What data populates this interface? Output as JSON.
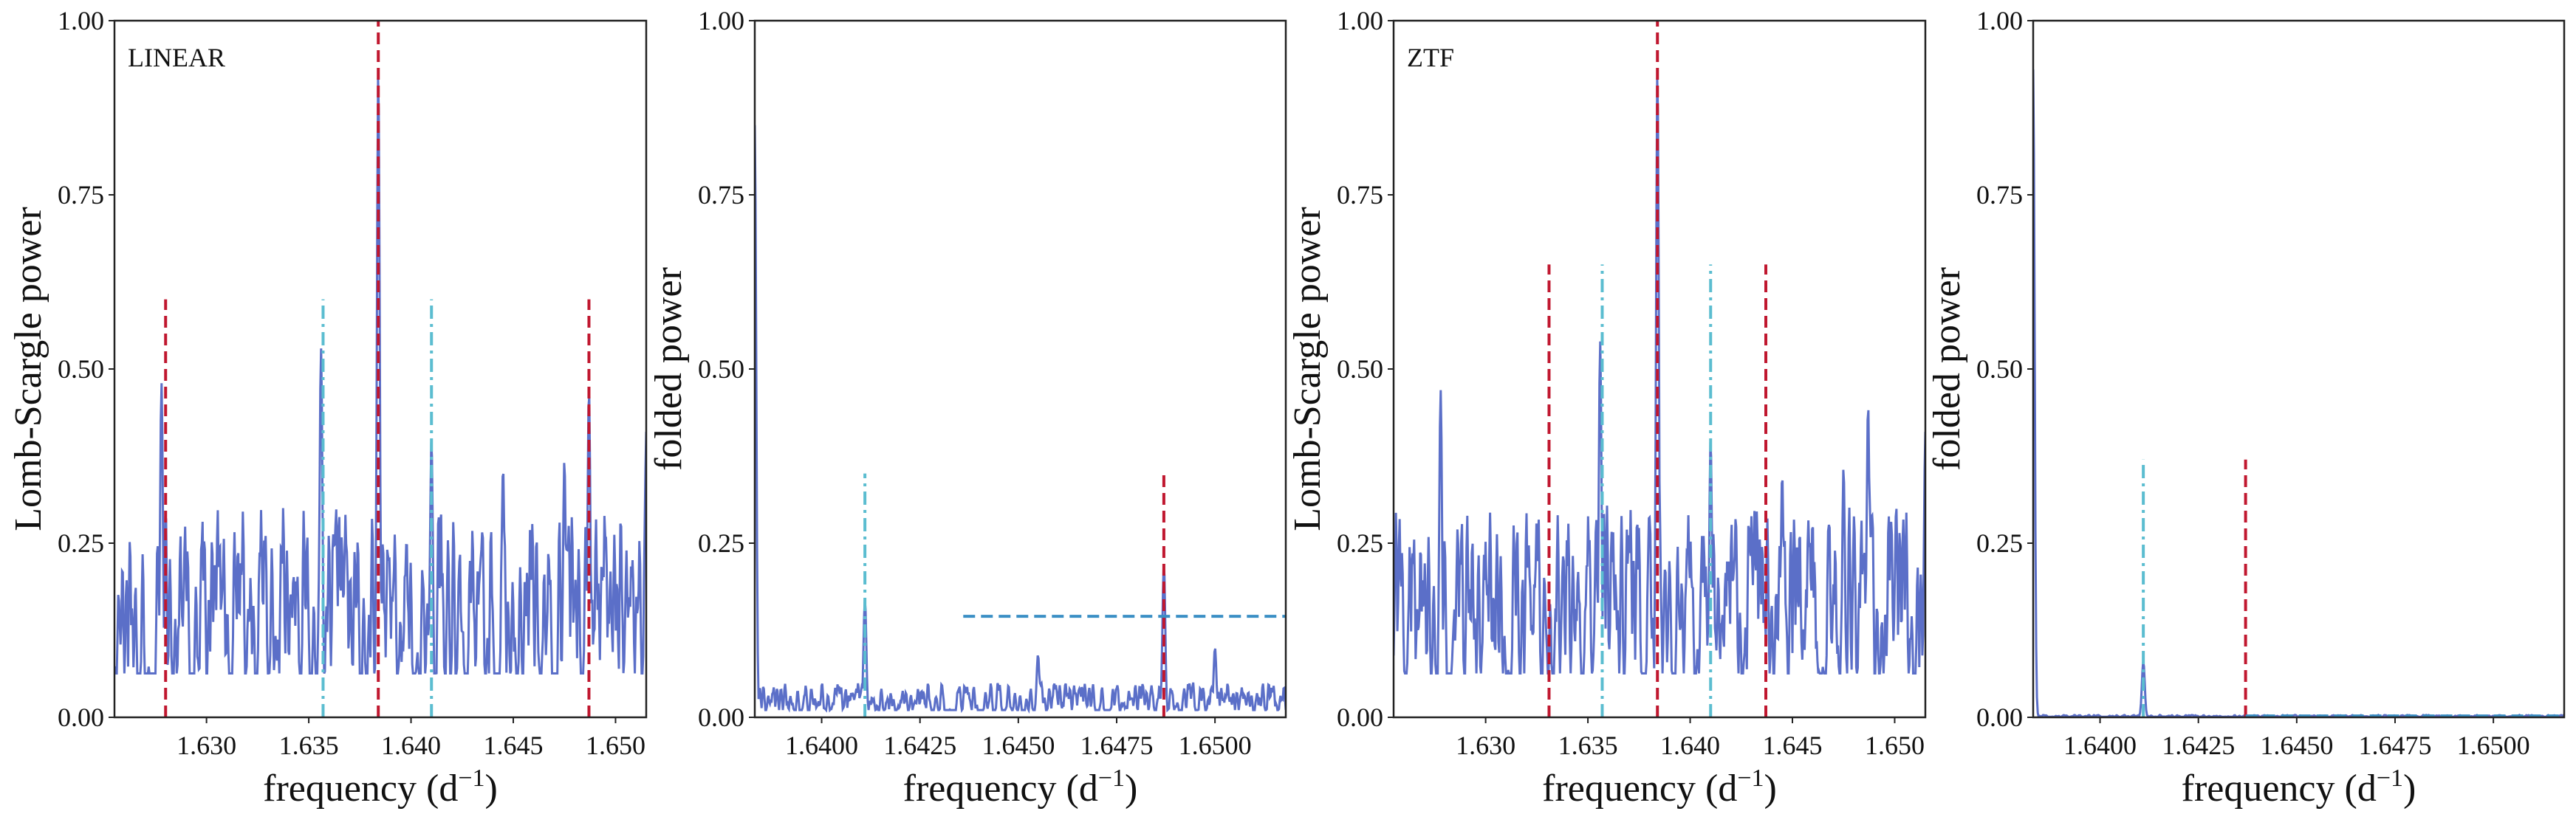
{
  "chart_data": [
    {
      "type": "line",
      "annotation": "LINEAR",
      "xlabel": "frequency (d",
      "xlabel_sup": "−1",
      "xlabel_tail": ")",
      "ylabel": "Lomb-Scargle power",
      "xlim": [
        1.6255,
        1.6515
      ],
      "ylim": [
        0,
        1
      ],
      "xticks": [
        1.63,
        1.635,
        1.64,
        1.645,
        1.65
      ],
      "xtick_labels": [
        "1.630",
        "1.635",
        "1.640",
        "1.645",
        "1.650"
      ],
      "yticks": [
        0,
        0.25,
        0.5,
        0.75,
        1.0
      ],
      "ytick_labels": [
        "0.00",
        "0.25",
        "0.50",
        "0.75",
        "1.00"
      ],
      "grid": false,
      "colors": {
        "series": "#5b6fc8",
        "red": "#c0172f",
        "cyan": "#5bbdd0"
      },
      "series": [
        {
          "peaks": [
            [
              1.6278,
              0.48
            ],
            [
              1.6356,
              0.53
            ],
            [
              1.6384,
              0.93
            ],
            [
              1.641,
              0.4
            ],
            [
              1.6487,
              0.47
            ],
            [
              1.6475,
              0.37
            ],
            [
              1.6445,
              0.36
            ],
            [
              1.6515,
              0.41
            ]
          ],
          "noise_level": 0.18
        }
      ],
      "vlines": [
        {
          "x": 1.628,
          "ymax": 0.6,
          "style": "dashed",
          "color": "#c0172f"
        },
        {
          "x": 1.6384,
          "ymax": 1.0,
          "style": "dashed",
          "color": "#c0172f"
        },
        {
          "x": 1.6487,
          "ymax": 0.6,
          "style": "dashed",
          "color": "#c0172f"
        },
        {
          "x": 1.6357,
          "ymax": 0.6,
          "style": "dashdot",
          "color": "#5bbdd0"
        },
        {
          "x": 1.641,
          "ymax": 0.6,
          "style": "dashdot",
          "color": "#5bbdd0"
        }
      ],
      "hlines": []
    },
    {
      "type": "line",
      "annotation": "",
      "xlabel": "frequency (d",
      "xlabel_sup": "−1",
      "xlabel_tail": ")",
      "ylabel": "folded power",
      "xlim": [
        1.6383,
        1.6518
      ],
      "ylim": [
        0,
        1
      ],
      "xticks": [
        1.64,
        1.6425,
        1.645,
        1.6475,
        1.65
      ],
      "xtick_labels": [
        "1.6400",
        "1.6425",
        "1.6450",
        "1.6475",
        "1.6500"
      ],
      "yticks": [
        0,
        0.25,
        0.5,
        0.75,
        1.0
      ],
      "ytick_labels": [
        "0.00",
        "0.25",
        "0.50",
        "0.75",
        "1.00"
      ],
      "grid": false,
      "colors": {
        "series": "#5b6fc8",
        "red": "#c0172f",
        "cyan": "#5bbdd0"
      },
      "series": [
        {
          "peaks": [
            [
              1.6383,
              0.85
            ],
            [
              1.6411,
              0.17
            ],
            [
              1.6487,
              0.22
            ],
            [
              1.6455,
              0.09
            ],
            [
              1.65,
              0.1
            ]
          ],
          "noise_level": 0.03
        }
      ],
      "vlines": [
        {
          "x": 1.6411,
          "ymax": 0.35,
          "style": "dashdot",
          "color": "#5bbdd0"
        },
        {
          "x": 1.6487,
          "ymax": 0.35,
          "style": "dashed",
          "color": "#c0172f"
        }
      ],
      "hlines": [
        {
          "y": 0.145,
          "xmin": 1.6436,
          "xmax": 1.6518,
          "style": "dashed",
          "color": "#3a8fc5"
        }
      ]
    },
    {
      "type": "line",
      "annotation": "ZTF",
      "xlabel": "frequency (d",
      "xlabel_sup": "−1",
      "xlabel_tail": ")",
      "ylabel": "Lomb-Scargle power",
      "xlim": [
        1.6255,
        1.6515
      ],
      "ylim": [
        0,
        1
      ],
      "xticks": [
        1.63,
        1.635,
        1.64,
        1.645,
        1.65
      ],
      "xtick_labels": [
        "1.630",
        "1.635",
        "1.640",
        "1.645",
        "1.650"
      ],
      "yticks": [
        0,
        0.25,
        0.5,
        0.75,
        1.0
      ],
      "ytick_labels": [
        "0.00",
        "0.25",
        "0.50",
        "0.75",
        "1.00"
      ],
      "grid": false,
      "colors": {
        "series": "#5b6fc8",
        "red": "#c0172f",
        "cyan": "#5bbdd0"
      },
      "series": [
        {
          "peaks": [
            [
              1.6278,
              0.47
            ],
            [
              1.6356,
              0.54
            ],
            [
              1.6384,
              0.93
            ],
            [
              1.641,
              0.4
            ],
            [
              1.6487,
              0.45
            ],
            [
              1.6475,
              0.36
            ],
            [
              1.6445,
              0.35
            ],
            [
              1.6515,
              0.41
            ]
          ],
          "noise_level": 0.18
        }
      ],
      "vlines": [
        {
          "x": 1.6331,
          "ymax": 0.65,
          "style": "dashed",
          "color": "#c0172f"
        },
        {
          "x": 1.6384,
          "ymax": 1.0,
          "style": "dashed",
          "color": "#c0172f"
        },
        {
          "x": 1.6437,
          "ymax": 0.65,
          "style": "dashed",
          "color": "#c0172f"
        },
        {
          "x": 1.6357,
          "ymax": 0.65,
          "style": "dashdot",
          "color": "#5bbdd0"
        },
        {
          "x": 1.641,
          "ymax": 0.65,
          "style": "dashdot",
          "color": "#5bbdd0"
        }
      ],
      "hlines": []
    },
    {
      "type": "line",
      "annotation": "",
      "xlabel": "frequency (d",
      "xlabel_sup": "−1",
      "xlabel_tail": ")",
      "ylabel": "folded power",
      "xlim": [
        1.6383,
        1.6518
      ],
      "ylim": [
        0,
        1
      ],
      "xticks": [
        1.64,
        1.6425,
        1.645,
        1.6475,
        1.65
      ],
      "xtick_labels": [
        "1.6400",
        "1.6425",
        "1.6450",
        "1.6475",
        "1.6500"
      ],
      "yticks": [
        0,
        0.25,
        0.5,
        0.75,
        1.0
      ],
      "ytick_labels": [
        "0.00",
        "0.25",
        "0.50",
        "0.75",
        "1.00"
      ],
      "grid": false,
      "colors": {
        "series": "#5b6fc8",
        "red": "#c0172f",
        "cyan": "#5bbdd0"
      },
      "series": [
        {
          "peaks": [
            [
              1.6383,
              0.93
            ],
            [
              1.6411,
              0.08
            ]
          ],
          "noise_level": 0.002
        }
      ],
      "vlines": [
        {
          "x": 1.6411,
          "ymax": 0.37,
          "style": "dashdot",
          "color": "#5bbdd0"
        },
        {
          "x": 1.6437,
          "ymax": 0.37,
          "style": "dashed",
          "color": "#c0172f"
        }
      ],
      "hlines": [
        {
          "y": 0.002,
          "xmin": 1.6437,
          "xmax": 1.6518,
          "style": "dashed",
          "color": "#3a8fc5"
        }
      ]
    }
  ]
}
